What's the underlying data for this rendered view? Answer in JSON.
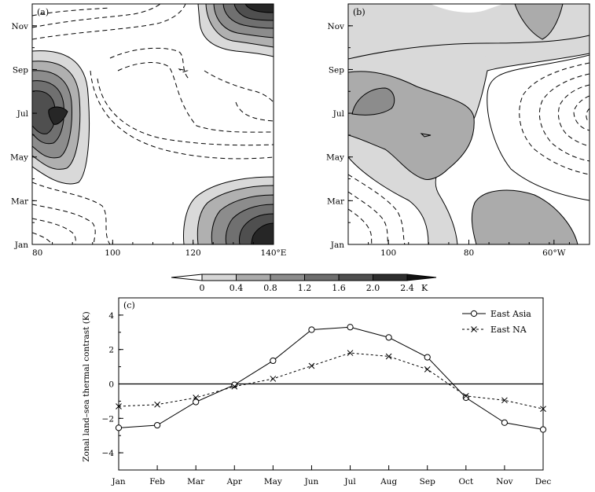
{
  "chart_data": [
    {
      "panel": "(a)",
      "type": "heatmap",
      "x_ticks": [
        "80",
        "100",
        "120",
        "140°E"
      ],
      "y_ticks": [
        "Jan",
        "Mar",
        "May",
        "Jul",
        "Sep",
        "Nov"
      ]
    },
    {
      "panel": "(b)",
      "type": "heatmap",
      "x_ticks": [
        "100",
        "80",
        "60°W"
      ],
      "y_ticks": [
        "Jan",
        "Mar",
        "May",
        "Jul",
        "Sep",
        "Nov"
      ]
    },
    {
      "colorbar": {
        "labels": [
          "0",
          "0.4",
          "0.8",
          "1.2",
          "1.6",
          "2.0",
          "2.4"
        ],
        "unit": "K",
        "colors": [
          "#ffffff",
          "#d6d6d6",
          "#ababab",
          "#8c8c8c",
          "#6e6e6e",
          "#4f4f4f",
          "#2e2e2e",
          "#111111"
        ]
      }
    },
    {
      "panel": "(c)",
      "type": "line",
      "categories": [
        "Jan",
        "Feb",
        "Mar",
        "Apr",
        "May",
        "Jun",
        "Jul",
        "Aug",
        "Sep",
        "Oct",
        "Nov",
        "Dec"
      ],
      "ylabel": "Zonal land–sea thermal contrast (K)",
      "ylim": [
        -5,
        5
      ],
      "y_ticks": [
        -4,
        -2,
        0,
        2,
        4
      ],
      "legend_position": "top-right",
      "series": [
        {
          "name": "East  Asia",
          "marker": "circle",
          "line": "solid",
          "values": [
            -2.55,
            -2.4,
            -1.05,
            -0.05,
            1.35,
            3.15,
            3.3,
            2.7,
            1.55,
            -0.8,
            -2.25,
            -2.65
          ]
        },
        {
          "name": "East  NA",
          "marker": "x",
          "line": "dashed",
          "values": [
            -1.3,
            -1.2,
            -0.8,
            -0.15,
            0.3,
            1.05,
            1.8,
            1.6,
            0.85,
            -0.7,
            -0.95,
            -1.45
          ]
        }
      ]
    }
  ]
}
